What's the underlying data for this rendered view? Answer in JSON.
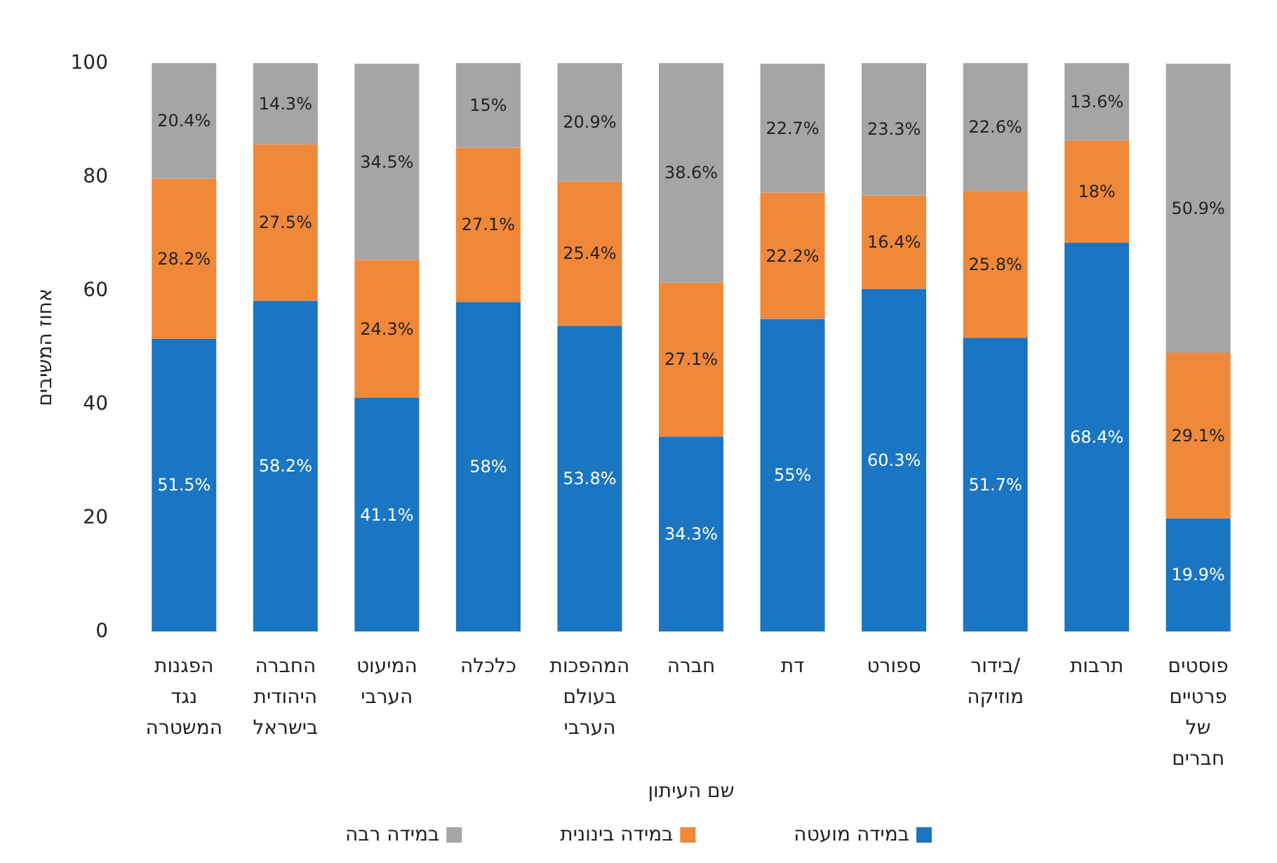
{
  "chart_data": {
    "type": "bar",
    "stacked": true,
    "xlabel": "שם העיתון",
    "ylabel": "אחוז המשיבים",
    "categories": [
      "הפגנות נגד המשטרה",
      "החברה היהודית בישראל",
      "המיעוט הערבי",
      "כלכלה",
      "המהפכות בעולם הערבי",
      "חברה",
      "דת",
      "ספורט",
      "בידור/ מוזיקה",
      "תרבות",
      "פוסטים פרטיים של חברים"
    ],
    "series": [
      {
        "name": "במידה מועטה",
        "color": "#1a75c2",
        "values": [
          51.5,
          58.2,
          41.1,
          58,
          53.8,
          34.3,
          55,
          60.3,
          51.7,
          68.4,
          19.9
        ],
        "value_labels": [
          "51.5%",
          "58.2%",
          "41.1%",
          "58%",
          "53.8%",
          "34.3%",
          "55%",
          "60.3%",
          "51.7%",
          "68.4%",
          "19.9%"
        ]
      },
      {
        "name": "במידה בינונית",
        "color": "#f0883a",
        "values": [
          28.2,
          27.5,
          24.3,
          27.1,
          25.4,
          27.1,
          22.2,
          16.4,
          25.8,
          18,
          29.1
        ],
        "value_labels": [
          "28.2%",
          "27.5%",
          "24.3%",
          "27.1%",
          "25.4%",
          "27.1%",
          "22.2%",
          "16.4%",
          "25.8%",
          "18%",
          "29.1%"
        ]
      },
      {
        "name": "במידה רבה",
        "color": "#a5a5a5",
        "values": [
          20.4,
          14.3,
          34.5,
          15,
          20.9,
          38.6,
          22.7,
          23.3,
          22.6,
          13.6,
          50.9
        ],
        "value_labels": [
          "20.4%",
          "14.3%",
          "34.5%",
          "15%",
          "20.9%",
          "38.6%",
          "22.7%",
          "23.3%",
          "22.6%",
          "13.6%",
          "50.9%"
        ]
      }
    ],
    "ylim": [
      0,
      100
    ],
    "yticks": [
      0,
      20,
      40,
      60,
      80,
      100
    ],
    "legend": "bottom"
  }
}
